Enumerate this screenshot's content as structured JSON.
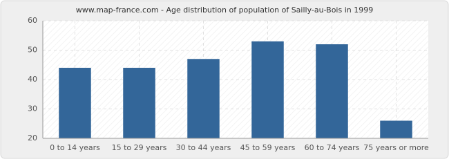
{
  "chart_data": {
    "type": "bar",
    "title": "www.map-france.com - Age distribution of population of Sailly-au-Bois in 1999",
    "categories": [
      "0 to 14 years",
      "15 to 29 years",
      "30 to 44 years",
      "45 to 59 years",
      "60 to 74 years",
      "75 years or more"
    ],
    "values": [
      44,
      44,
      47,
      53,
      52,
      26
    ],
    "color": "#336699",
    "ylim": [
      20,
      60
    ],
    "yticks": [
      20,
      30,
      40,
      50,
      60
    ],
    "grid": true
  }
}
